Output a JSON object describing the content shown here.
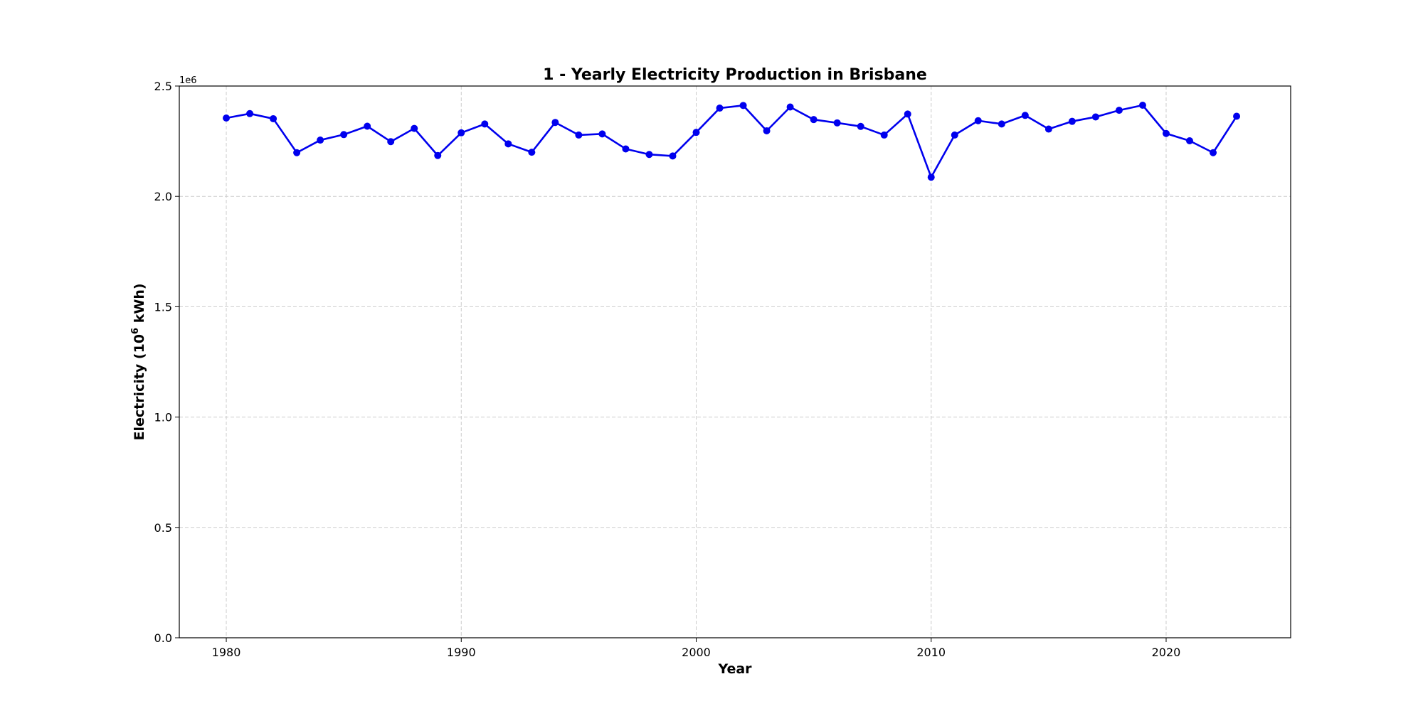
{
  "chart_data": {
    "type": "line",
    "title": "1 - Yearly Electricity Production in Brisbane",
    "xlabel": "Year",
    "ylabel_main": "Electricity (10",
    "ylabel_sup": "6",
    "ylabel_end": " kWh)",
    "y_offset_label": "1e6",
    "xlim": [
      1978,
      2025.3
    ],
    "ylim": [
      0,
      2500000
    ],
    "x_ticks": [
      1980,
      1990,
      2000,
      2010,
      2020
    ],
    "x_tick_labels": [
      "1980",
      "1990",
      "2000",
      "2010",
      "2020"
    ],
    "y_ticks": [
      0,
      500000,
      1000000,
      1500000,
      2000000,
      2500000
    ],
    "y_tick_labels": [
      "0.0",
      "0.5",
      "1.0",
      "1.5",
      "2.0",
      "2.5"
    ],
    "grid": true,
    "line_color": "#0000ee",
    "series": [
      {
        "x": [
          1980,
          1981,
          1982,
          1983,
          1984,
          1985,
          1986,
          1987,
          1988,
          1989,
          1990,
          1991,
          1992,
          1993,
          1994,
          1995,
          1996,
          1997,
          1998,
          1999,
          2000,
          2001,
          2002,
          2003,
          2004,
          2005,
          2006,
          2007,
          2008,
          2009,
          2010,
          2011,
          2012,
          2013,
          2014,
          2015,
          2016,
          2017,
          2018,
          2019,
          2020,
          2021,
          2022,
          2023
        ],
        "values": [
          2355000,
          2375000,
          2352000,
          2198000,
          2255000,
          2280000,
          2318000,
          2248000,
          2308000,
          2185000,
          2288000,
          2328000,
          2238000,
          2200000,
          2335000,
          2278000,
          2283000,
          2215000,
          2190000,
          2183000,
          2290000,
          2400000,
          2412000,
          2297000,
          2405000,
          2348000,
          2333000,
          2317000,
          2278000,
          2373000,
          2087000,
          2278000,
          2343000,
          2328000,
          2367000,
          2305000,
          2340000,
          2360000,
          2390000,
          2413000,
          2285000,
          2252000,
          2198000,
          2363000
        ]
      }
    ]
  }
}
